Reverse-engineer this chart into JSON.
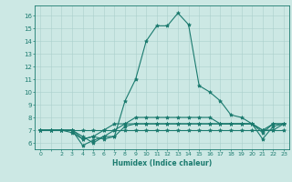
{
  "xlabel": "Humidex (Indice chaleur)",
  "xlim": [
    -0.5,
    23.5
  ],
  "ylim": [
    5.5,
    16.8
  ],
  "yticks": [
    6,
    7,
    8,
    9,
    10,
    11,
    12,
    13,
    14,
    15,
    16
  ],
  "xtick_labels": [
    "0",
    "",
    "2",
    "3",
    "4",
    "5",
    "6",
    "7",
    "8",
    "9",
    "10",
    "11",
    "12",
    "13",
    "14",
    "15",
    "16",
    "17",
    "18",
    "19",
    "20",
    "21",
    "22",
    "23"
  ],
  "line_color": "#1a7a6e",
  "bg_color": "#cce8e4",
  "grid_color": "#aacfcc",
  "series": [
    {
      "x": [
        0,
        1,
        2,
        3,
        4,
        5,
        6,
        7,
        8,
        9,
        10,
        11,
        12,
        13,
        14,
        15,
        16,
        17,
        18,
        19,
        20,
        21,
        22,
        23
      ],
      "y": [
        7.0,
        7.0,
        7.0,
        7.0,
        7.0,
        7.0,
        7.0,
        7.0,
        7.0,
        7.0,
        7.0,
        7.0,
        7.0,
        7.0,
        7.0,
        7.0,
        7.0,
        7.0,
        7.0,
        7.0,
        7.0,
        7.0,
        7.0,
        7.0
      ]
    },
    {
      "x": [
        0,
        1,
        2,
        3,
        4,
        5,
        6,
        7,
        8,
        9,
        10,
        11,
        12,
        13,
        14,
        15,
        16,
        17,
        18,
        19,
        20,
        21,
        22,
        23
      ],
      "y": [
        7.0,
        7.0,
        7.0,
        7.0,
        6.5,
        6.0,
        6.5,
        6.5,
        7.3,
        7.5,
        7.5,
        7.5,
        7.5,
        7.5,
        7.5,
        7.5,
        7.5,
        7.5,
        7.5,
        7.5,
        7.5,
        7.0,
        7.0,
        7.5
      ]
    },
    {
      "x": [
        0,
        1,
        2,
        3,
        4,
        5,
        6,
        7,
        8,
        9,
        10,
        11,
        12,
        13,
        14,
        15,
        16,
        17,
        18,
        19,
        20,
        21,
        22,
        23
      ],
      "y": [
        7.0,
        7.0,
        7.0,
        7.0,
        5.8,
        6.2,
        6.5,
        7.0,
        7.5,
        7.5,
        7.5,
        7.5,
        7.5,
        7.5,
        7.5,
        7.5,
        7.5,
        7.5,
        7.5,
        7.5,
        7.5,
        6.8,
        7.5,
        7.5
      ]
    },
    {
      "x": [
        0,
        1,
        2,
        3,
        4,
        5,
        6,
        7,
        8,
        9,
        10,
        11,
        12,
        13,
        14,
        15,
        16,
        17,
        18,
        19,
        20,
        21,
        22,
        23
      ],
      "y": [
        7.0,
        7.0,
        7.0,
        7.0,
        6.3,
        6.5,
        7.0,
        7.5,
        7.5,
        8.0,
        8.0,
        8.0,
        8.0,
        8.0,
        8.0,
        8.0,
        8.0,
        7.5,
        7.5,
        7.5,
        7.5,
        7.0,
        7.5,
        7.5
      ]
    },
    {
      "x": [
        0,
        1,
        2,
        3,
        4,
        5,
        6,
        7,
        8,
        9,
        10,
        11,
        12,
        13,
        14,
        15,
        16,
        17,
        18,
        19,
        20,
        21,
        22,
        23
      ],
      "y": [
        7.0,
        7.0,
        7.0,
        6.8,
        6.3,
        6.5,
        6.3,
        6.5,
        9.3,
        11.0,
        14.0,
        15.2,
        15.2,
        16.2,
        15.3,
        10.5,
        10.0,
        9.3,
        8.2,
        8.0,
        7.5,
        6.3,
        7.3,
        7.5
      ]
    }
  ]
}
